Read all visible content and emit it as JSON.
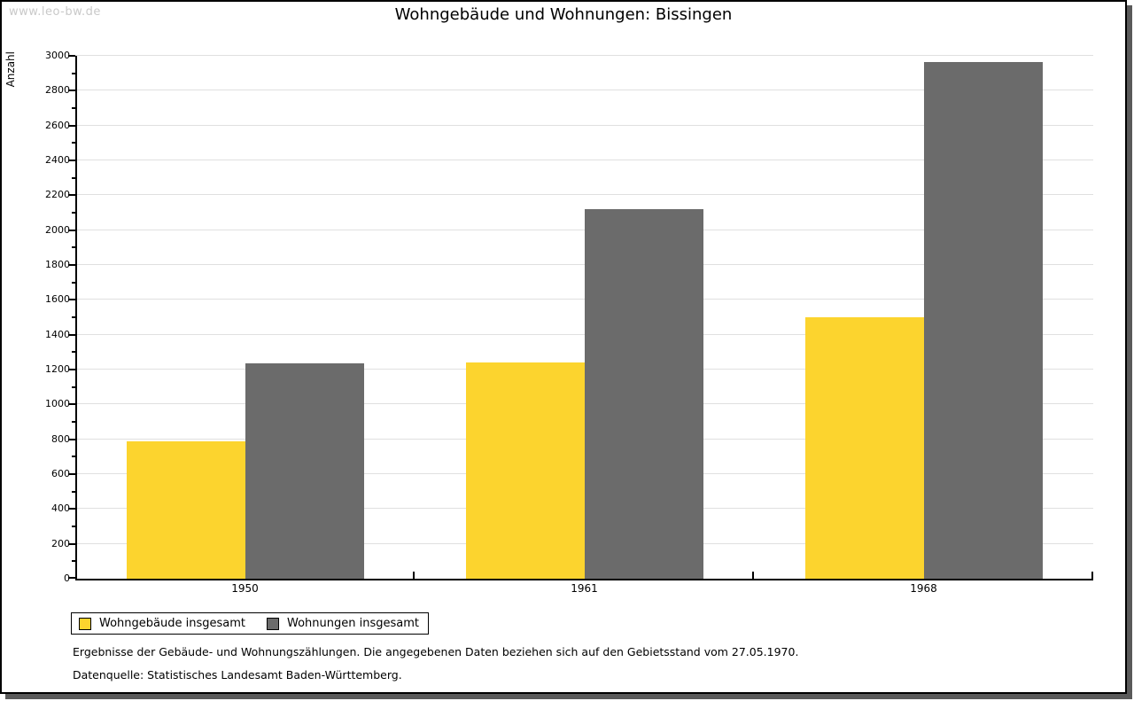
{
  "page": {
    "watermark": "www.leo-bw.de",
    "title": "Wohngebäude und Wohnungen: Bissingen",
    "footnotes": [
      "Ergebnisse der Gebäude- und Wohnungszählungen. Die angegebenen Daten beziehen sich auf den Gebietsstand vom 27.05.1970.",
      "Datenquelle: Statistisches Landesamt Baden-Württemberg."
    ]
  },
  "chart_data": {
    "type": "bar",
    "title": "Wohngebäude und Wohnungen: Bissingen",
    "xlabel": "",
    "ylabel": "Anzahl",
    "categories": [
      "1950",
      "1961",
      "1968"
    ],
    "series": [
      {
        "name": "Wohngebäude insgesamt",
        "color": "#FCD42E",
        "values": [
          790,
          1240,
          1500
        ]
      },
      {
        "name": "Wohnungen insgesamt",
        "color": "#6B6B6B",
        "values": [
          1235,
          2120,
          2965
        ]
      }
    ],
    "ylim": [
      0,
      3000
    ],
    "ytick_major": 200,
    "ytick_minor": 100,
    "grid": true,
    "gridline_color": "#e0e0e0",
    "legend_position": "bottom-left"
  }
}
